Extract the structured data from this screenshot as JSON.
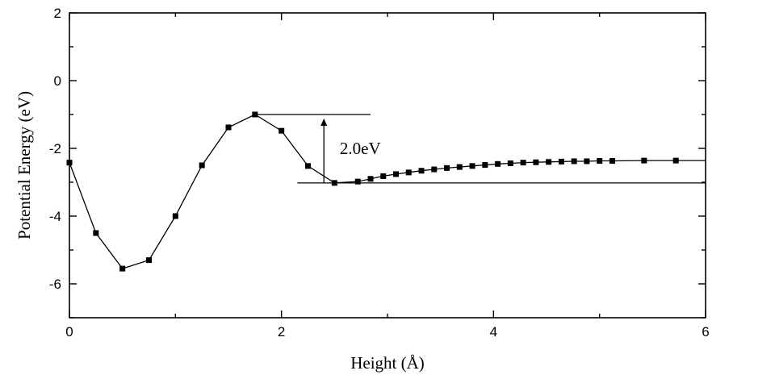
{
  "chart_data": {
    "type": "line",
    "title": "",
    "xlabel": "Height (Å)",
    "ylabel": "Potential Energy (eV)",
    "xlim": [
      0,
      6
    ],
    "ylim": [
      -7,
      2
    ],
    "xticks": [
      0,
      2,
      4,
      6
    ],
    "yticks": [
      2,
      0,
      -2,
      -4,
      -6
    ],
    "xtick_labels": [
      "0",
      "2",
      "4",
      "6"
    ],
    "ytick_labels": [
      "2",
      "0",
      "-2",
      "-4",
      "-6"
    ],
    "grid": false,
    "legend": "none",
    "marker": "square",
    "color": "#000000",
    "series": [
      {
        "x": [
          0.0,
          0.25,
          0.5,
          0.75,
          1.0,
          1.25,
          1.5,
          1.75,
          2.0,
          2.25,
          2.5,
          2.72,
          2.84,
          2.96,
          3.08,
          3.2,
          3.32,
          3.44,
          3.56,
          3.68,
          3.8,
          3.92,
          4.04,
          4.16,
          4.28,
          4.4,
          4.52,
          4.64,
          4.76,
          4.88,
          5.0,
          5.12,
          5.42,
          5.72
        ],
        "y": [
          -2.42,
          -4.5,
          -5.55,
          -5.3,
          -4.0,
          -2.5,
          -1.38,
          -1.0,
          -1.48,
          -2.52,
          -3.02,
          -2.98,
          -2.9,
          -2.82,
          -2.76,
          -2.71,
          -2.66,
          -2.62,
          -2.58,
          -2.55,
          -2.52,
          -2.49,
          -2.46,
          -2.44,
          -2.42,
          -2.41,
          -2.4,
          -2.39,
          -2.38,
          -2.38,
          -2.37,
          -2.37,
          -2.36,
          -2.36
        ]
      }
    ],
    "annotations": [
      {
        "text": "2.0eV",
        "upper_line": {
          "x": [
            1.77,
            2.84
          ],
          "y": -1.0
        },
        "lower_line": {
          "x": [
            2.15,
            6.0
          ],
          "y": -3.02
        },
        "arrow": {
          "x": 2.4,
          "y_from": -3.02,
          "y_to": -1.0
        },
        "label_at": {
          "x": 2.55,
          "y": -2.0
        }
      }
    ]
  }
}
